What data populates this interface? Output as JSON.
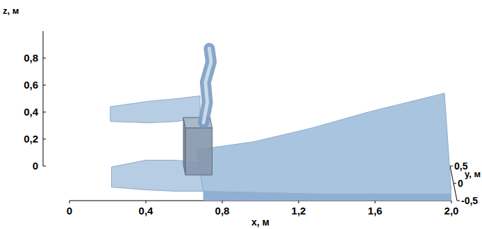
{
  "chart_data": {
    "type": "surface",
    "x_label": "x, м",
    "y_label": "y, м",
    "z_label": "z, м",
    "color": "#a9c4de",
    "xlim": [
      0,
      2.0
    ],
    "xticks": [
      0,
      {
        "value": 0.4,
        "label": "0,4"
      },
      {
        "value": 0.8,
        "label": "0,8"
      },
      {
        "value": 1.2,
        "label": "1,2"
      },
      {
        "value": 1.6,
        "label": "1,6"
      },
      {
        "value": 2.0,
        "label": "2,0"
      }
    ],
    "ylim": [
      -0.5,
      0.5
    ],
    "yticks": [
      {
        "value": -0.5,
        "label": "-0,5"
      },
      0,
      {
        "value": 0.5,
        "label": "0,5"
      }
    ],
    "zlim": [
      0,
      1.0
    ],
    "zticks": [
      0,
      {
        "value": 0.2,
        "label": "0,2"
      },
      {
        "value": 0.4,
        "label": "0,4"
      },
      {
        "value": 0.6,
        "label": "0,6"
      },
      {
        "value": 0.8,
        "label": "0,8"
      }
    ],
    "surface": {
      "x": [
        0.7,
        1.0,
        1.3,
        1.6,
        2.0
      ],
      "z_near": [
        0.07,
        0.06,
        0.05,
        0.05,
        0.05
      ],
      "z_far": [
        0.12,
        0.18,
        0.28,
        0.4,
        0.54
      ]
    },
    "jets": [
      {
        "y": -0.5,
        "x": [
          0.22,
          0.4,
          0.55,
          0.7
        ],
        "z_top": [
          0.25,
          0.3,
          0.3,
          0.28
        ],
        "z_bottom": [
          0.1,
          0.08,
          0.07,
          0.07
        ]
      },
      {
        "y": 0.5,
        "x": [
          0.25,
          0.45,
          0.6,
          0.72
        ],
        "z_top": [
          0.44,
          0.48,
          0.5,
          0.52
        ],
        "z_bottom": [
          0.33,
          0.32,
          0.33,
          0.36
        ]
      }
    ],
    "obstacle": {
      "x": [
        0.62,
        0.76
      ],
      "y": [
        -0.15,
        0.15
      ],
      "z": [
        0.1,
        0.45
      ]
    },
    "splash": {
      "x": [
        0.72,
        0.74,
        0.73,
        0.76,
        0.75
      ],
      "z": [
        0.45,
        0.6,
        0.75,
        0.9,
        1.0
      ]
    }
  }
}
